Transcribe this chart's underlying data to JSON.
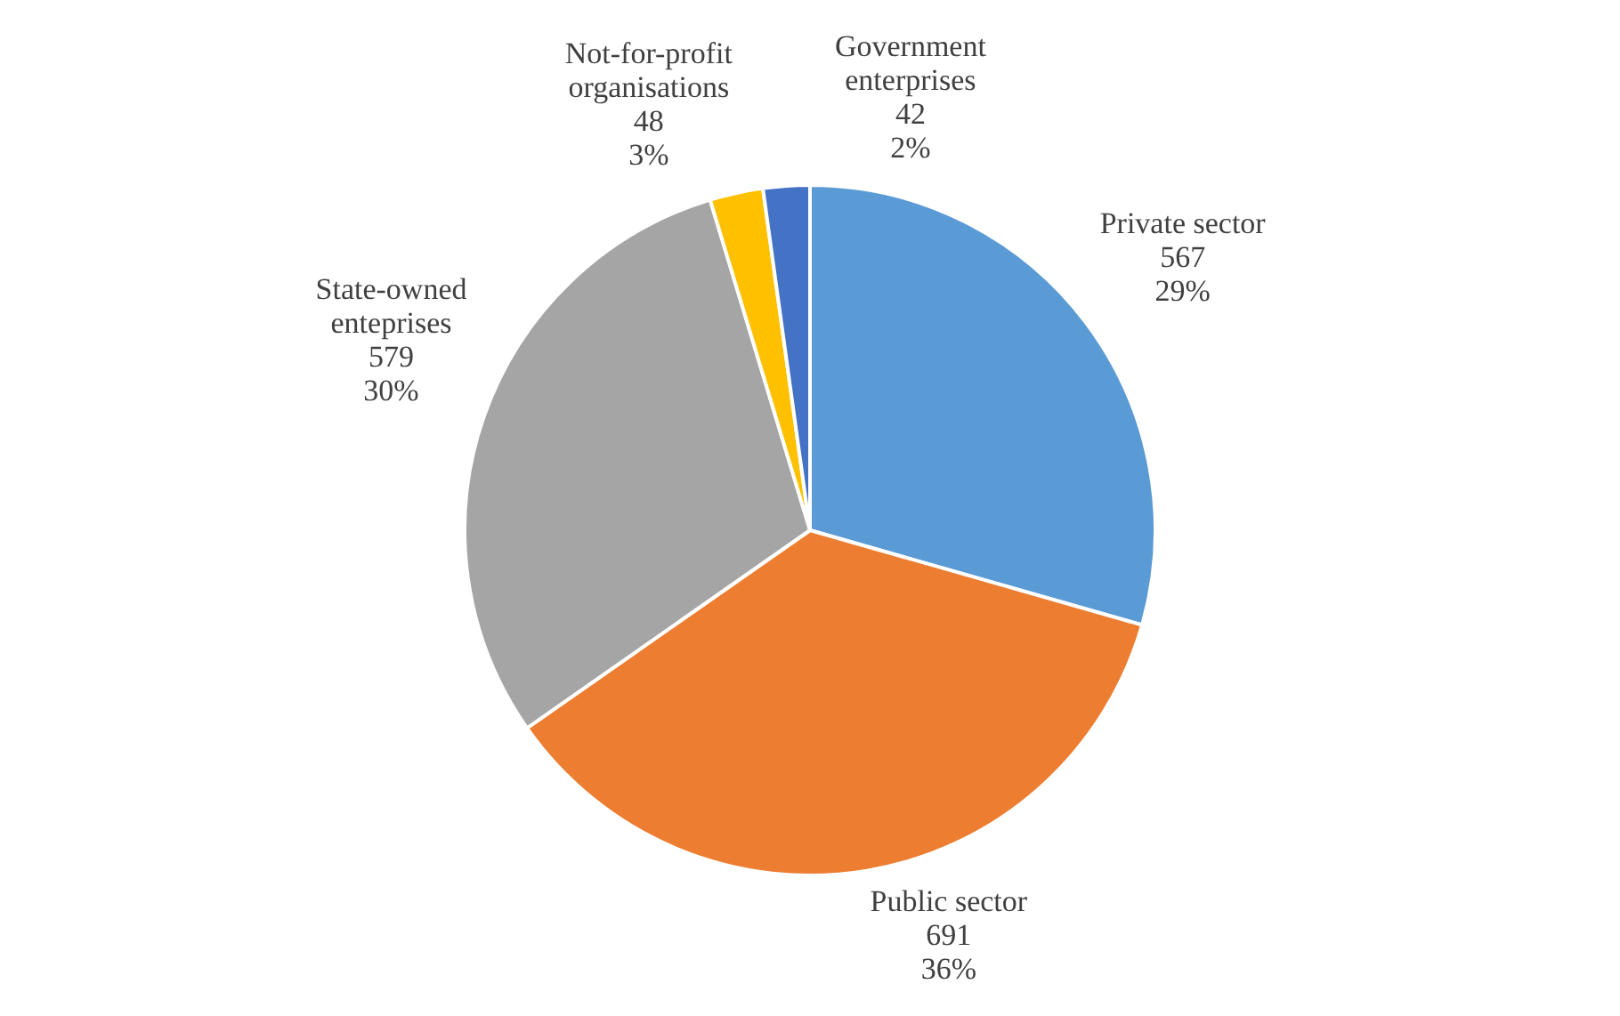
{
  "chart_data": {
    "type": "pie",
    "categories": [
      "Private sector",
      "Public sector",
      "State-owned enteprises",
      "Not-for-profit organisations",
      "Government enterprises"
    ],
    "values": [
      567,
      691,
      579,
      48,
      42
    ],
    "colors": [
      "#5b9bd5",
      "#ed7d31",
      "#a5a5a5",
      "#ffc000",
      "#4472c4"
    ],
    "value_labels": [
      "567\n29%",
      "691\n36%",
      "579\n30%",
      "48\n3%",
      "42\n2%"
    ],
    "legend": false
  }
}
